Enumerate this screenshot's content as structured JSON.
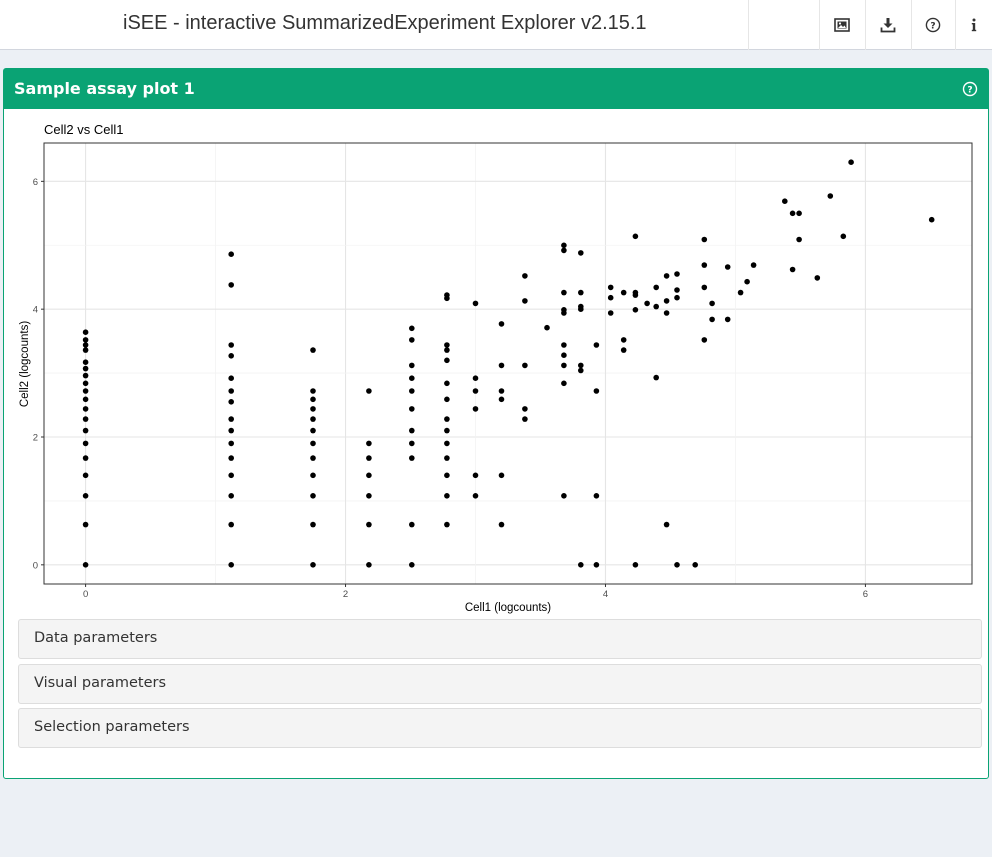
{
  "header": {
    "title": "iSEE - interactive SummarizedExperiment Explorer v2.15.1",
    "buttons": [
      {
        "name": "screenshot-icon"
      },
      {
        "name": "download-icon"
      },
      {
        "name": "help-icon"
      },
      {
        "name": "info-icon"
      }
    ]
  },
  "panel": {
    "title": "Sample assay plot 1",
    "help_icon": "question-circle-icon",
    "header_color": "#0aa374",
    "sections": [
      {
        "label": "Data parameters"
      },
      {
        "label": "Visual parameters"
      },
      {
        "label": "Selection parameters"
      }
    ]
  },
  "chart_data": {
    "type": "scatter",
    "title": "Cell2 vs Cell1",
    "xlabel": "Cell1 (logcounts)",
    "ylabel": "Cell2 (logcounts)",
    "xlim": [
      -0.32,
      6.82
    ],
    "ylim": [
      -0.3,
      6.6
    ],
    "xticks": [
      "0",
      "2",
      "4",
      "6"
    ],
    "yticks": [
      "0",
      "2",
      "4",
      "6"
    ],
    "grid": true,
    "point_color": "#000000",
    "points": [
      [
        0,
        0
      ],
      [
        0,
        0.63
      ],
      [
        0,
        1.08
      ],
      [
        0,
        1.4
      ],
      [
        0,
        1.67
      ],
      [
        0,
        1.9
      ],
      [
        0,
        2.1
      ],
      [
        0,
        2.28
      ],
      [
        0,
        2.44
      ],
      [
        0,
        2.59
      ],
      [
        0,
        2.72
      ],
      [
        0,
        2.84
      ],
      [
        0,
        2.96
      ],
      [
        0,
        3.07
      ],
      [
        0,
        3.17
      ],
      [
        0,
        3.36
      ],
      [
        0,
        3.44
      ],
      [
        0,
        3.52
      ],
      [
        0,
        3.64
      ],
      [
        1.12,
        0
      ],
      [
        1.12,
        0.63
      ],
      [
        1.12,
        1.08
      ],
      [
        1.12,
        1.4
      ],
      [
        1.12,
        1.67
      ],
      [
        1.12,
        1.9
      ],
      [
        1.12,
        2.1
      ],
      [
        1.12,
        2.28
      ],
      [
        1.12,
        2.55
      ],
      [
        1.12,
        2.72
      ],
      [
        1.12,
        2.92
      ],
      [
        1.12,
        3.27
      ],
      [
        1.12,
        3.44
      ],
      [
        1.12,
        4.38
      ],
      [
        1.12,
        4.86
      ],
      [
        1.75,
        0
      ],
      [
        1.75,
        0.63
      ],
      [
        1.75,
        1.08
      ],
      [
        1.75,
        1.4
      ],
      [
        1.75,
        1.67
      ],
      [
        1.75,
        1.9
      ],
      [
        1.75,
        2.1
      ],
      [
        1.75,
        2.28
      ],
      [
        1.75,
        2.44
      ],
      [
        1.75,
        2.59
      ],
      [
        1.75,
        2.72
      ],
      [
        1.75,
        3.36
      ],
      [
        2.18,
        0
      ],
      [
        2.18,
        0.63
      ],
      [
        2.18,
        1.08
      ],
      [
        2.18,
        1.4
      ],
      [
        2.18,
        1.67
      ],
      [
        2.18,
        1.9
      ],
      [
        2.18,
        2.72
      ],
      [
        2.51,
        0
      ],
      [
        2.51,
        0.63
      ],
      [
        2.51,
        1.67
      ],
      [
        2.51,
        1.9
      ],
      [
        2.51,
        2.1
      ],
      [
        2.51,
        2.44
      ],
      [
        2.51,
        2.72
      ],
      [
        2.51,
        2.92
      ],
      [
        2.51,
        3.12
      ],
      [
        2.51,
        3.52
      ],
      [
        2.51,
        3.7
      ],
      [
        2.78,
        0.63
      ],
      [
        2.78,
        1.08
      ],
      [
        2.78,
        1.4
      ],
      [
        2.78,
        1.67
      ],
      [
        2.78,
        1.9
      ],
      [
        2.78,
        2.1
      ],
      [
        2.78,
        2.28
      ],
      [
        2.78,
        2.59
      ],
      [
        2.78,
        2.84
      ],
      [
        2.78,
        3.2
      ],
      [
        2.78,
        3.36
      ],
      [
        2.78,
        3.44
      ],
      [
        2.78,
        4.17
      ],
      [
        2.78,
        4.22
      ],
      [
        3.0,
        1.08
      ],
      [
        3.0,
        1.4
      ],
      [
        3.0,
        2.44
      ],
      [
        3.0,
        2.72
      ],
      [
        3.0,
        2.92
      ],
      [
        3.0,
        4.09
      ],
      [
        3.2,
        0.63
      ],
      [
        3.2,
        1.4
      ],
      [
        3.2,
        2.59
      ],
      [
        3.2,
        2.72
      ],
      [
        3.2,
        3.12
      ],
      [
        3.2,
        3.77
      ],
      [
        3.38,
        2.28
      ],
      [
        3.38,
        2.44
      ],
      [
        3.38,
        3.12
      ],
      [
        3.38,
        4.13
      ],
      [
        3.38,
        4.52
      ],
      [
        3.55,
        3.71
      ],
      [
        3.68,
        1.08
      ],
      [
        3.68,
        2.84
      ],
      [
        3.68,
        3.12
      ],
      [
        3.68,
        3.28
      ],
      [
        3.68,
        3.44
      ],
      [
        3.68,
        3.94
      ],
      [
        3.68,
        3.99
      ],
      [
        3.68,
        4.26
      ],
      [
        3.68,
        4.92
      ],
      [
        3.68,
        5.0
      ],
      [
        3.81,
        0
      ],
      [
        3.81,
        3.04
      ],
      [
        3.81,
        3.12
      ],
      [
        3.81,
        4.0
      ],
      [
        3.81,
        4.04
      ],
      [
        3.81,
        4.26
      ],
      [
        3.81,
        4.88
      ],
      [
        3.93,
        0
      ],
      [
        3.93,
        1.08
      ],
      [
        3.93,
        2.72
      ],
      [
        3.93,
        3.44
      ],
      [
        4.04,
        3.94
      ],
      [
        4.04,
        4.18
      ],
      [
        4.04,
        4.34
      ],
      [
        4.14,
        3.36
      ],
      [
        4.14,
        3.52
      ],
      [
        4.14,
        4.26
      ],
      [
        4.23,
        0
      ],
      [
        4.23,
        3.99
      ],
      [
        4.23,
        4.22
      ],
      [
        4.23,
        4.26
      ],
      [
        4.23,
        5.14
      ],
      [
        4.32,
        4.09
      ],
      [
        4.39,
        2.93
      ],
      [
        4.39,
        4.04
      ],
      [
        4.39,
        4.34
      ],
      [
        4.47,
        0.63
      ],
      [
        4.47,
        3.94
      ],
      [
        4.47,
        4.13
      ],
      [
        4.47,
        4.52
      ],
      [
        4.55,
        0
      ],
      [
        4.55,
        4.18
      ],
      [
        4.55,
        4.3
      ],
      [
        4.55,
        4.55
      ],
      [
        4.69,
        0
      ],
      [
        4.76,
        3.52
      ],
      [
        4.76,
        4.34
      ],
      [
        4.76,
        4.69
      ],
      [
        4.76,
        5.09
      ],
      [
        4.82,
        3.84
      ],
      [
        4.82,
        4.09
      ],
      [
        4.94,
        3.84
      ],
      [
        4.94,
        4.66
      ],
      [
        5.04,
        4.26
      ],
      [
        5.09,
        4.43
      ],
      [
        5.14,
        4.69
      ],
      [
        5.38,
        5.69
      ],
      [
        5.44,
        4.62
      ],
      [
        5.44,
        5.5
      ],
      [
        5.49,
        5.09
      ],
      [
        5.49,
        5.5
      ],
      [
        5.63,
        4.49
      ],
      [
        5.73,
        5.77
      ],
      [
        5.83,
        5.14
      ],
      [
        5.89,
        6.3
      ],
      [
        6.51,
        5.4
      ]
    ]
  }
}
